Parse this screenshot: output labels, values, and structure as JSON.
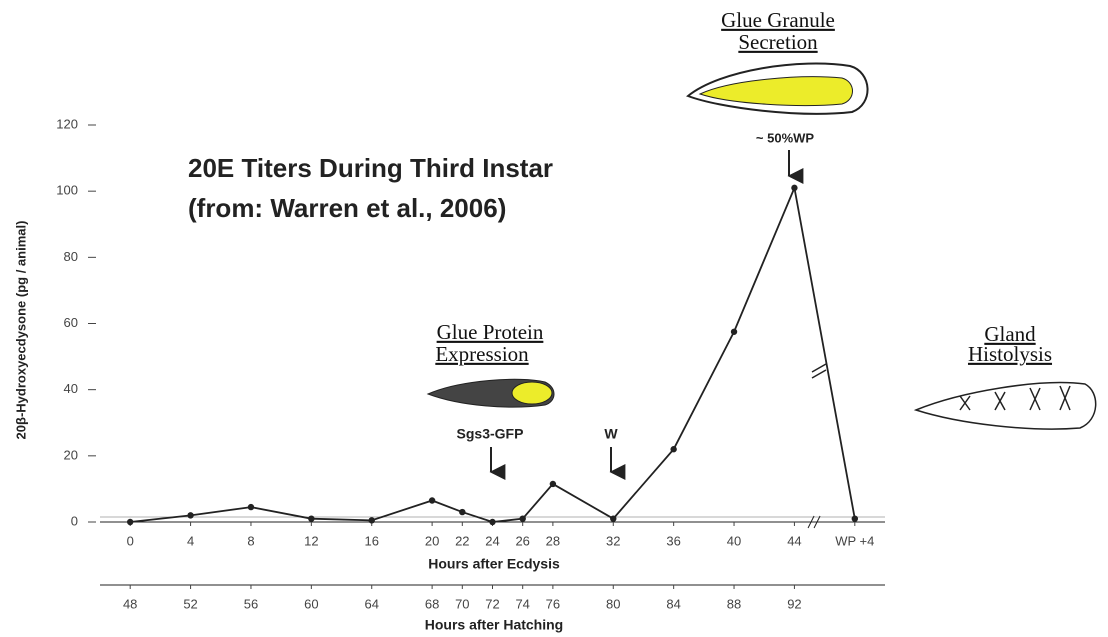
{
  "chart_data": {
    "type": "line",
    "title": "20E Titers During Third Instar",
    "subtitle": "(from:  Warren et al., 2006)",
    "y_label": "20β-Hydroxyecdysone (pg / animal)",
    "x_label": "Hours after Ecdysis",
    "x2_label": "Hours after Hatching",
    "x": [
      0,
      4,
      8,
      12,
      16,
      20,
      22,
      24,
      26,
      28,
      32,
      36,
      40,
      44,
      48
    ],
    "values": [
      0,
      2,
      4.5,
      1,
      0.5,
      6.5,
      3,
      0,
      1,
      11.5,
      1,
      22,
      57.5,
      101,
      1
    ],
    "color": "#222222",
    "xlim": [
      -2,
      50
    ],
    "xticks": [
      0,
      4,
      8,
      12,
      16,
      20,
      22,
      24,
      26,
      28,
      32,
      36,
      40,
      44,
      {
        "value": 48,
        "label": "WP +4"
      }
    ],
    "x2lim": [
      46,
      98
    ],
    "x2ticks": [
      48,
      52,
      56,
      60,
      64,
      68,
      70,
      72,
      74,
      76,
      80,
      84,
      88,
      92
    ],
    "ylim": [
      0,
      120
    ],
    "yticks": [
      0,
      20,
      40,
      60,
      80,
      100,
      120
    ],
    "annotations": {
      "granule_title_1": "Glue Granule",
      "granule_title_2": "Secretion",
      "granule_stage": "~ 50%WP",
      "protein_title_1": "Glue Protein",
      "protein_title_2": "Expression",
      "protein_marker": "Sgs3-GFP",
      "w_marker": "W",
      "histolysis_title_1": "Gland",
      "histolysis_title_2": "Histolysis"
    }
  }
}
